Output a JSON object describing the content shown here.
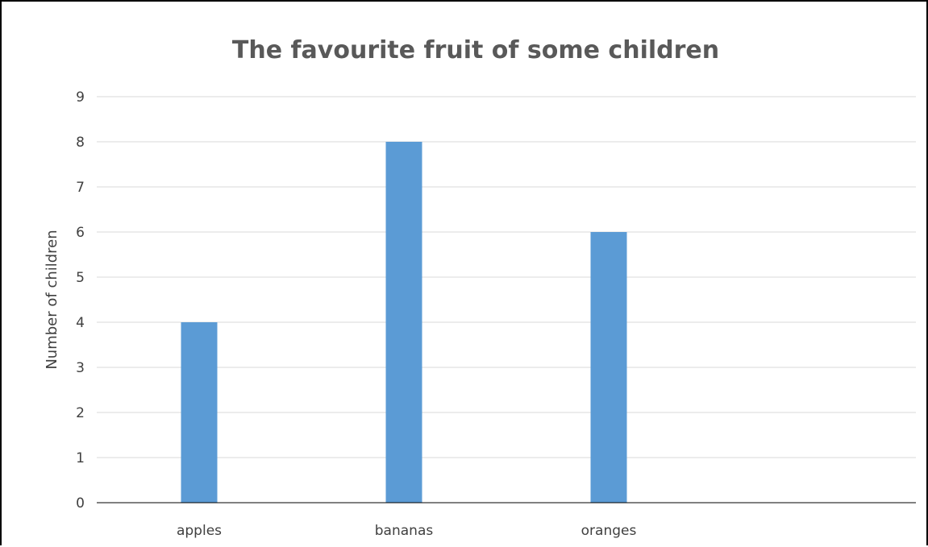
{
  "chart_data": {
    "type": "bar",
    "title": "The favourite fruit of some children",
    "xlabel": "",
    "ylabel": "Number of children",
    "categories": [
      "apples",
      "bananas",
      "oranges",
      ""
    ],
    "values": [
      4,
      8,
      6,
      null
    ],
    "ylim": [
      0,
      9
    ],
    "yticks": [
      "0",
      "1",
      "2",
      "3",
      "4",
      "5",
      "6",
      "7",
      "8",
      "9"
    ],
    "grid": true,
    "legend": "none",
    "bar_color": "#5B9BD5"
  },
  "colors": {
    "gridline": "#D9D9D9",
    "axis": "#000000",
    "text": "#404040",
    "title": "#595959"
  }
}
